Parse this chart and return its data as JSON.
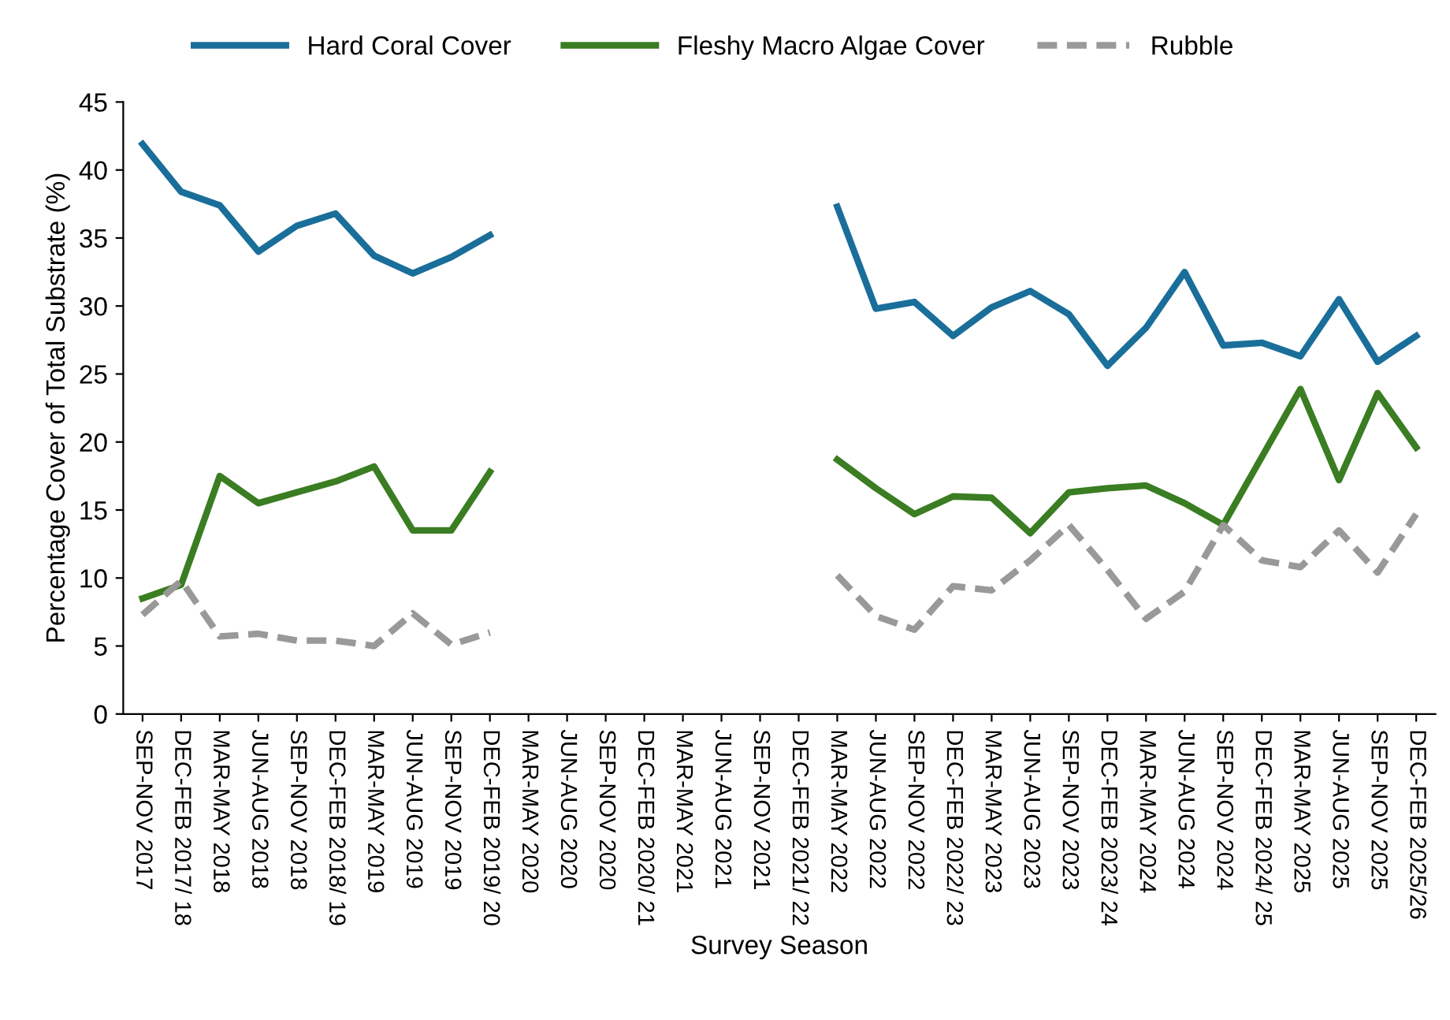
{
  "chart_data": {
    "type": "line",
    "xlabel": "Survey Season",
    "ylabel": "Percentage Cover of Total Substrate (%)",
    "categories": [
      "SEP-NOV 2017",
      "DEC-FEB 2017/ 18",
      "MAR-MAY 2018",
      "JUN-AUG 2018",
      "SEP-NOV 2018",
      "DEC-FEB 2018/ 19",
      "MAR-MAY 2019",
      "JUN-AUG 2019",
      "SEP-NOV 2019",
      "DEC-FEB 2019/ 20",
      "MAR-MAY 2020",
      "JUN-AUG 2020",
      "SEP-NOV 2020",
      "DEC-FEB 2020/ 21",
      "MAR-MAY 2021",
      "JUN-AUG 2021",
      "SEP-NOV 2021",
      "DEC-FEB 2021/ 22",
      "MAR-MAY 2022",
      "JUN-AUG 2022",
      "SEP-NOV 2022",
      "DEC-FEB 2022/ 23",
      "MAR-MAY 2023",
      "JUN-AUG 2023",
      "SEP-NOV 2023",
      "DEC-FEB 2023/ 24",
      "MAR-MAY 2024",
      "JUN-AUG 2024",
      "SEP-NOV 2024",
      "DEC-FEB 2024/ 25",
      "MAR-MAY 2025",
      "JUN-AUG 2025",
      "SEP-NOV 2025",
      "DEC-FEB 2025/26"
    ],
    "series": [
      {
        "name": "Hard Coral Cover",
        "color": "#1a6e9a",
        "line_style": "solid",
        "values": [
          41.9,
          38.4,
          37.4,
          34.0,
          35.9,
          36.8,
          33.7,
          32.4,
          33.6,
          35.2,
          null,
          null,
          null,
          null,
          null,
          null,
          null,
          null,
          37.3,
          29.8,
          30.3,
          27.8,
          29.9,
          31.1,
          29.4,
          25.6,
          28.4,
          32.5,
          27.1,
          27.3,
          26.3,
          30.5,
          25.9,
          27.8
        ]
      },
      {
        "name": "Fleshy Macro Algae Cover",
        "color": "#3a7d22",
        "line_style": "solid",
        "values": [
          8.5,
          9.5,
          17.5,
          15.5,
          16.3,
          17.1,
          18.2,
          13.5,
          13.5,
          17.8,
          null,
          null,
          null,
          null,
          null,
          null,
          null,
          null,
          18.7,
          16.6,
          14.7,
          16.0,
          15.9,
          13.3,
          16.3,
          16.6,
          16.8,
          15.5,
          13.9,
          18.9,
          23.9,
          17.2,
          23.6,
          19.6
        ]
      },
      {
        "name": "Rubble",
        "color": "#999999",
        "line_style": "dashed",
        "values": [
          7.3,
          9.8,
          5.7,
          5.9,
          5.4,
          5.4,
          5.0,
          7.4,
          5.1,
          6.0,
          null,
          null,
          null,
          null,
          null,
          null,
          null,
          null,
          10.2,
          7.2,
          6.2,
          9.4,
          9.1,
          11.3,
          13.9,
          10.6,
          7.0,
          9.0,
          13.9,
          11.3,
          10.8,
          13.5,
          10.4,
          14.7
        ]
      }
    ],
    "ylim": [
      0,
      45
    ],
    "yticks": [
      0,
      5,
      10,
      15,
      20,
      25,
      30,
      35,
      40,
      45
    ],
    "grid": false,
    "legend": "top",
    "marker": "none"
  }
}
